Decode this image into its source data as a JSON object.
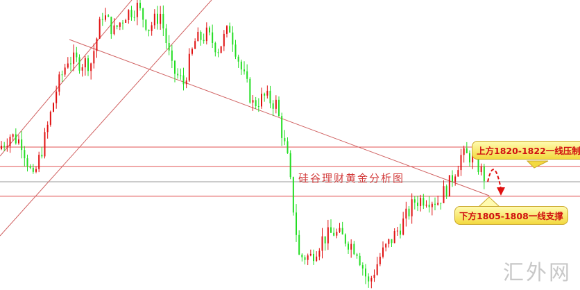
{
  "chart_data": {
    "type": "candlestick",
    "title": "硅谷理财黄金分析图",
    "closes": [
      1821.3,
      1826.1,
      1823.7,
      1810.5,
      1824.9,
      1841.7,
      1852.5,
      1851.3,
      1851.3,
      1868.1,
      1862.1,
      1868.1,
      1870.5,
      1863.3,
      1868.1,
      1848.9,
      1844.1,
      1858.5,
      1860.9,
      1856.1,
      1863.3,
      1848.9,
      1836.9,
      1839.3,
      1836.9,
      1817.7,
      1784.1,
      1784.1,
      1790.1,
      1792.5,
      1790.1,
      1786.5,
      1774.5,
      1784.1,
      1790.1,
      1796.1,
      1803.3,
      1804.5,
      1803.3,
      1809.3,
      1818.9,
      1818.9,
      1811.7
    ],
    "levels": [
      {
        "price": 1822,
        "color": "#e05050"
      },
      {
        "price": 1815.3,
        "color": "#e05050"
      },
      {
        "price": 1810,
        "color": "#999999"
      },
      {
        "price": 1805,
        "color": "#e05050"
      }
    ],
    "up_color": "#e01010",
    "down_color": "#22dd22",
    "annotations": {
      "resistance": "上方1820-1822一线压制",
      "support": "下方1805-1808一线支撑"
    },
    "grid": false
  },
  "watermark": "汇外网"
}
